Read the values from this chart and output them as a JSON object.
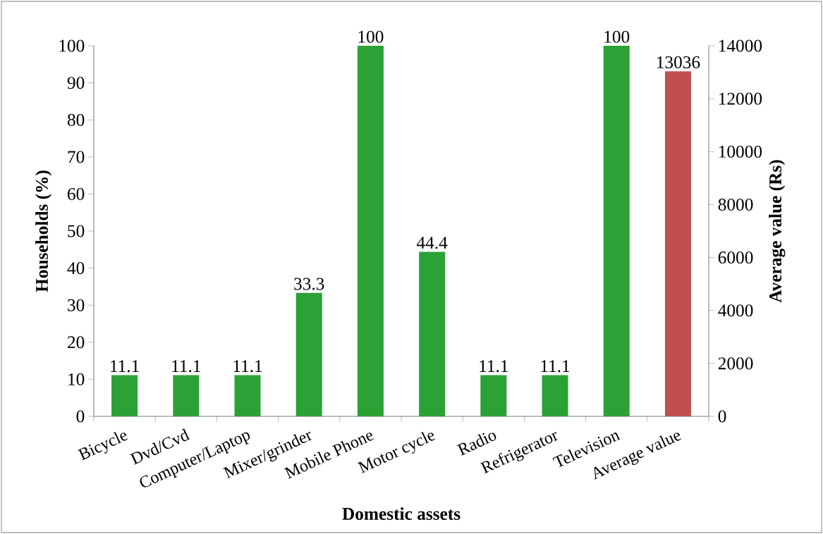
{
  "chart_data": {
    "type": "bar",
    "xlabel": "Domestic assets",
    "ylabel": "Households (%)",
    "y2label": "Average value (Rs)",
    "categories": [
      "Bicycle",
      "Dvd/Cvd",
      "Computer/Laptop",
      "Mixer/grinder",
      "Mobile Phone",
      "Motor cycle",
      "Radio",
      "Refrigerator",
      "Television",
      "Average value"
    ],
    "series": [
      {
        "color": "#2ca136",
        "values": [
          11.1,
          11.1,
          11.1,
          33.3,
          100,
          44.4,
          11.1,
          11.1,
          100,
          null
        ]
      },
      {
        "color": "#c0504d",
        "axis": "y2",
        "values": [
          null,
          null,
          null,
          null,
          null,
          null,
          null,
          null,
          null,
          13036
        ]
      }
    ],
    "ylim": [
      0,
      100
    ],
    "yticks": [
      0,
      10,
      20,
      30,
      40,
      50,
      60,
      70,
      80,
      90,
      100
    ],
    "y2lim": [
      0,
      14000
    ],
    "y2ticks": [
      0,
      2000,
      4000,
      6000,
      8000,
      10000,
      12000,
      14000
    ],
    "data_labels": true
  }
}
